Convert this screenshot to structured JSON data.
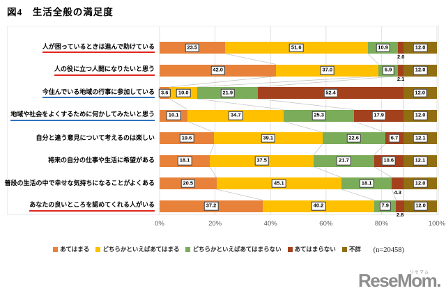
{
  "title": "図4　生活全般の満足度",
  "n_label": "(n=20458)",
  "underline_colors": {
    "red": "#e0251c",
    "blue": "#2f74c0"
  },
  "watermark": {
    "text": "ReseMom.",
    "ruby": "リセマム",
    "color": "#8d8d8d"
  },
  "chart_data": {
    "type": "bar",
    "orientation": "horizontal",
    "stacked": true,
    "grid": true,
    "legend_position": "bottom",
    "xlim": [
      0,
      100
    ],
    "x_ticks": [
      "0%",
      "20%",
      "40%",
      "60%",
      "80%",
      "100%"
    ],
    "series_names": [
      "あてはまる",
      "どちらかといえばあてはまる",
      "どちらかといえばあてはまらない",
      "あてはまらない",
      "不詳"
    ],
    "series_colors": [
      "#e8823a",
      "#ffc000",
      "#7bac5a",
      "#a3411d",
      "#916e12"
    ],
    "rows": [
      {
        "label": "人が困っているときは進んで助けている",
        "underline": "red",
        "values": [
          23.5,
          51.6,
          10.9,
          2.0,
          12.0
        ],
        "label_pos": [
          "box",
          "box",
          "box",
          "below",
          "box"
        ]
      },
      {
        "label": "人の役に立つ人間になりたいと思う",
        "underline": "red",
        "values": [
          42.0,
          37.0,
          6.9,
          2.1,
          12.0
        ],
        "label_pos": [
          "box",
          "box",
          "box",
          "below",
          "box"
        ]
      },
      {
        "label": "今住んでいる地域の行事に参加している",
        "underline": "blue",
        "values": [
          3.6,
          10.0,
          21.9,
          52.4,
          12.0
        ],
        "label_pos": [
          "box",
          "box",
          "box",
          "box",
          "box"
        ]
      },
      {
        "label": "地域や社会をよくするために何かしてみたいと思う",
        "underline": "blue",
        "values": [
          10.1,
          34.7,
          25.3,
          17.9,
          12.0
        ],
        "label_pos": [
          "box",
          "box",
          "box",
          "box",
          "box"
        ]
      },
      {
        "label": "自分と違う意見について考えるのは楽しい",
        "underline": "none",
        "values": [
          19.6,
          39.1,
          22.6,
          6.7,
          12.1
        ],
        "label_pos": [
          "box",
          "box",
          "box",
          "box",
          "box"
        ]
      },
      {
        "label": "将来の自分の仕事や生活に希望がある",
        "underline": "none",
        "values": [
          18.1,
          37.5,
          21.7,
          10.6,
          12.1
        ],
        "label_pos": [
          "box",
          "box",
          "box",
          "box",
          "box"
        ]
      },
      {
        "label": "普段の生活の中で幸せな気持ちになることがよくある",
        "underline": "none",
        "values": [
          20.5,
          45.1,
          18.1,
          4.3,
          12.0
        ],
        "label_pos": [
          "box",
          "box",
          "box",
          "below",
          "box"
        ]
      },
      {
        "label": "あなたの良いところを認めてくれる人がいる",
        "underline": "red",
        "values": [
          37.2,
          40.2,
          7.9,
          2.8,
          12.0
        ],
        "label_pos": [
          "box",
          "box",
          "box",
          "below",
          "box"
        ]
      }
    ]
  }
}
